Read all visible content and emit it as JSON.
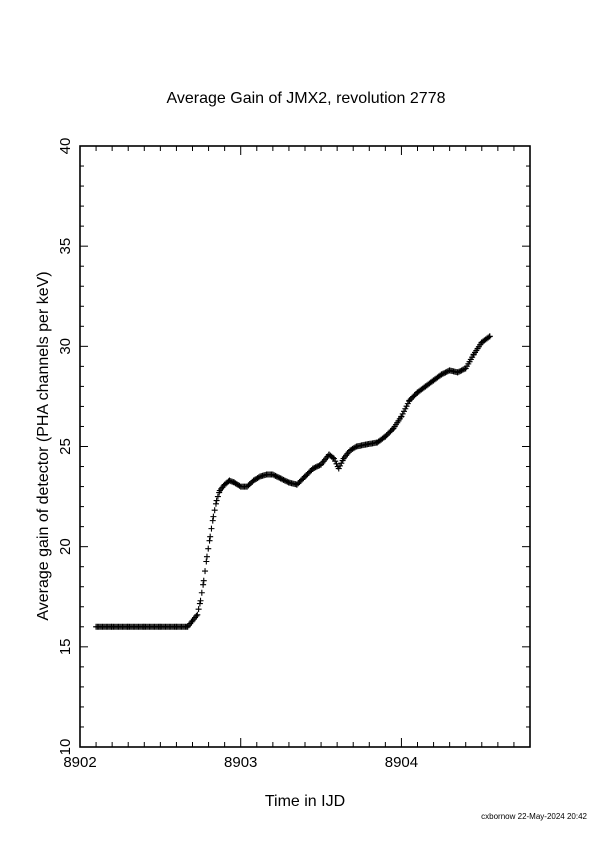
{
  "chart_data": {
    "type": "scatter",
    "title": "Average Gain of JMX2, revolution 2778",
    "xlabel": "Time in IJD",
    "ylabel": "Average gain of detector (PHA channels per keV)",
    "xlim": [
      8902,
      8904.8
    ],
    "ylim": [
      10,
      40
    ],
    "xticks": [
      8902,
      8903,
      8904
    ],
    "yticks": [
      10,
      15,
      20,
      25,
      30,
      35,
      40
    ],
    "marker": "+",
    "color": "#000000",
    "grid": false,
    "series": [
      {
        "x": [
          8902.1,
          8902.2,
          8902.3,
          8902.4,
          8902.5,
          8902.6,
          8902.67,
          8902.7,
          8902.73,
          8902.75,
          8902.77,
          8902.79,
          8902.81,
          8902.83,
          8902.85,
          8902.87,
          8902.9,
          8902.93,
          8902.96,
          8903.0,
          8903.04,
          8903.08,
          8903.12,
          8903.16,
          8903.2,
          8903.25,
          8903.3,
          8903.35,
          8903.4,
          8903.45,
          8903.5,
          8903.55,
          8903.58,
          8903.61,
          8903.64,
          8903.68,
          8903.72,
          8903.78,
          8903.85,
          8903.9,
          8903.95,
          8904.0,
          8904.05,
          8904.1,
          8904.15,
          8904.2,
          8904.25,
          8904.3,
          8904.35,
          8904.4,
          8904.45,
          8904.5,
          8904.55
        ],
        "y": [
          16.0,
          16.0,
          16.0,
          16.0,
          16.0,
          16.0,
          16.0,
          16.3,
          16.6,
          17.3,
          18.3,
          19.5,
          20.5,
          21.5,
          22.3,
          22.8,
          23.1,
          23.3,
          23.2,
          23.0,
          23.0,
          23.3,
          23.5,
          23.6,
          23.6,
          23.4,
          23.2,
          23.1,
          23.5,
          23.9,
          24.1,
          24.6,
          24.4,
          23.9,
          24.4,
          24.8,
          25.0,
          25.1,
          25.2,
          25.5,
          25.9,
          26.5,
          27.3,
          27.7,
          28.0,
          28.3,
          28.6,
          28.8,
          28.7,
          28.9,
          29.6,
          30.2,
          30.5
        ]
      }
    ]
  },
  "footer": "cxbornow 22-May-2024 20:42"
}
